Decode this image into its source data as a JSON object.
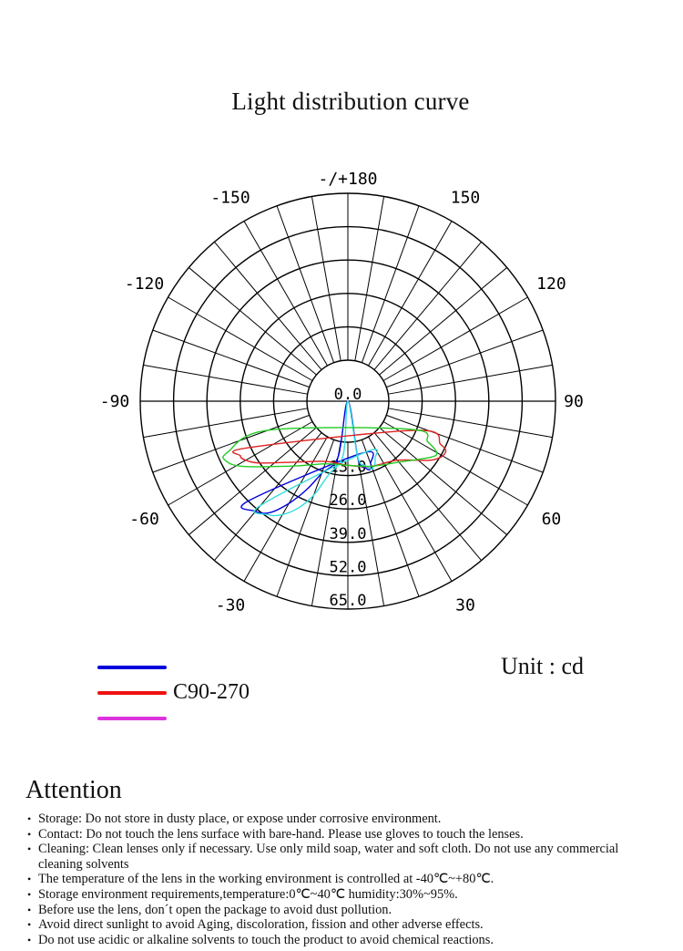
{
  "title": "Light distribution curve",
  "chart_data": {
    "type": "polar",
    "title": "Light distribution curve",
    "unit": "Unit : cd",
    "angle_labels": [
      {
        "angle": 180,
        "label": "-/+180"
      },
      {
        "angle": 150,
        "label": "150"
      },
      {
        "angle": -150,
        "label": "-150"
      },
      {
        "angle": 120,
        "label": "120"
      },
      {
        "angle": -120,
        "label": "-120"
      },
      {
        "angle": 90,
        "label": "90"
      },
      {
        "angle": -90,
        "label": "-90"
      },
      {
        "angle": 60,
        "label": "60"
      },
      {
        "angle": -60,
        "label": "-60"
      },
      {
        "angle": 30,
        "label": "30"
      },
      {
        "angle": -30,
        "label": "-30"
      }
    ],
    "radial_ticks": [
      0,
      13.0,
      26.0,
      39.0,
      52.0,
      65.0
    ],
    "radial_labels": [
      "0",
      "13.0",
      "26.0",
      "39.0",
      "52.0",
      "65.0"
    ],
    "rmax": 65,
    "grid": true,
    "series": [
      {
        "color": "#0000dd",
        "values": [
          [
            -45,
            39
          ],
          [
            -40,
            40
          ],
          [
            -35,
            37
          ],
          [
            -30,
            30
          ],
          [
            -25,
            22
          ],
          [
            -20,
            14
          ],
          [
            -10,
            6
          ],
          [
            0,
            0
          ],
          [
            10,
            7
          ],
          [
            15,
            11
          ],
          [
            18,
            12
          ],
          [
            20,
            10
          ],
          [
            15,
            5
          ]
        ]
      },
      {
        "color": "#33dddd",
        "values": [
          [
            -40,
            37
          ],
          [
            -35,
            38
          ],
          [
            -30,
            35
          ],
          [
            -25,
            30
          ],
          [
            -20,
            23
          ],
          [
            -15,
            14
          ],
          [
            -5,
            5
          ],
          [
            0,
            0
          ],
          [
            10,
            6
          ],
          [
            15,
            10
          ],
          [
            20,
            12
          ],
          [
            25,
            9
          ],
          [
            20,
            5
          ]
        ]
      },
      {
        "color": "#dd2222",
        "values": [
          [
            -65,
            27
          ],
          [
            -63,
            31
          ],
          [
            -60,
            30
          ],
          [
            -55,
            26
          ],
          [
            -40,
            15
          ],
          [
            -20,
            9
          ],
          [
            0,
            9
          ],
          [
            20,
            11
          ],
          [
            40,
            14
          ],
          [
            55,
            24
          ],
          [
            62,
            27
          ],
          [
            65,
            24
          ],
          [
            67,
            13
          ]
        ]
      },
      {
        "color": "#22cc22",
        "values": [
          [
            -70,
            17
          ],
          [
            -67,
            35
          ],
          [
            -64,
            37
          ],
          [
            -58,
            32
          ],
          [
            -40,
            17
          ],
          [
            -20,
            10
          ],
          [
            0,
            9
          ],
          [
            20,
            11
          ],
          [
            40,
            15
          ],
          [
            56,
            23
          ],
          [
            60,
            24
          ],
          [
            63,
            19
          ],
          [
            66,
            11
          ]
        ]
      }
    ]
  },
  "legend": {
    "colors": [
      "#0000dd",
      "#ee1111",
      "#dd33dd"
    ],
    "label": "C90-270"
  },
  "unit_label": "Unit : cd",
  "attention": {
    "title": "Attention",
    "items": [
      "Storage: Do not store in dusty place, or expose under corrosive environment.",
      "Contact: Do not touch the lens surface with bare-hand. Please use gloves to touch the lenses.",
      "Cleaning: Clean lenses only if necessary. Use only mild soap, water and soft cloth. Do not use any commercial cleaning solvents",
      "The temperature of the lens in the working environment is controlled at -40℃~+80℃.",
      "Storage environment requirements,temperature:0℃~40℃ humidity:30%~95%.",
      "Before use the lens, don´t open the package to avoid dust pollution.",
      "Avoid direct sunlight to avoid Aging, discoloration, fission and other adverse effects.",
      "Do not use acidic or alkaline solvents to touch the product to avoid chemical reactions."
    ]
  }
}
